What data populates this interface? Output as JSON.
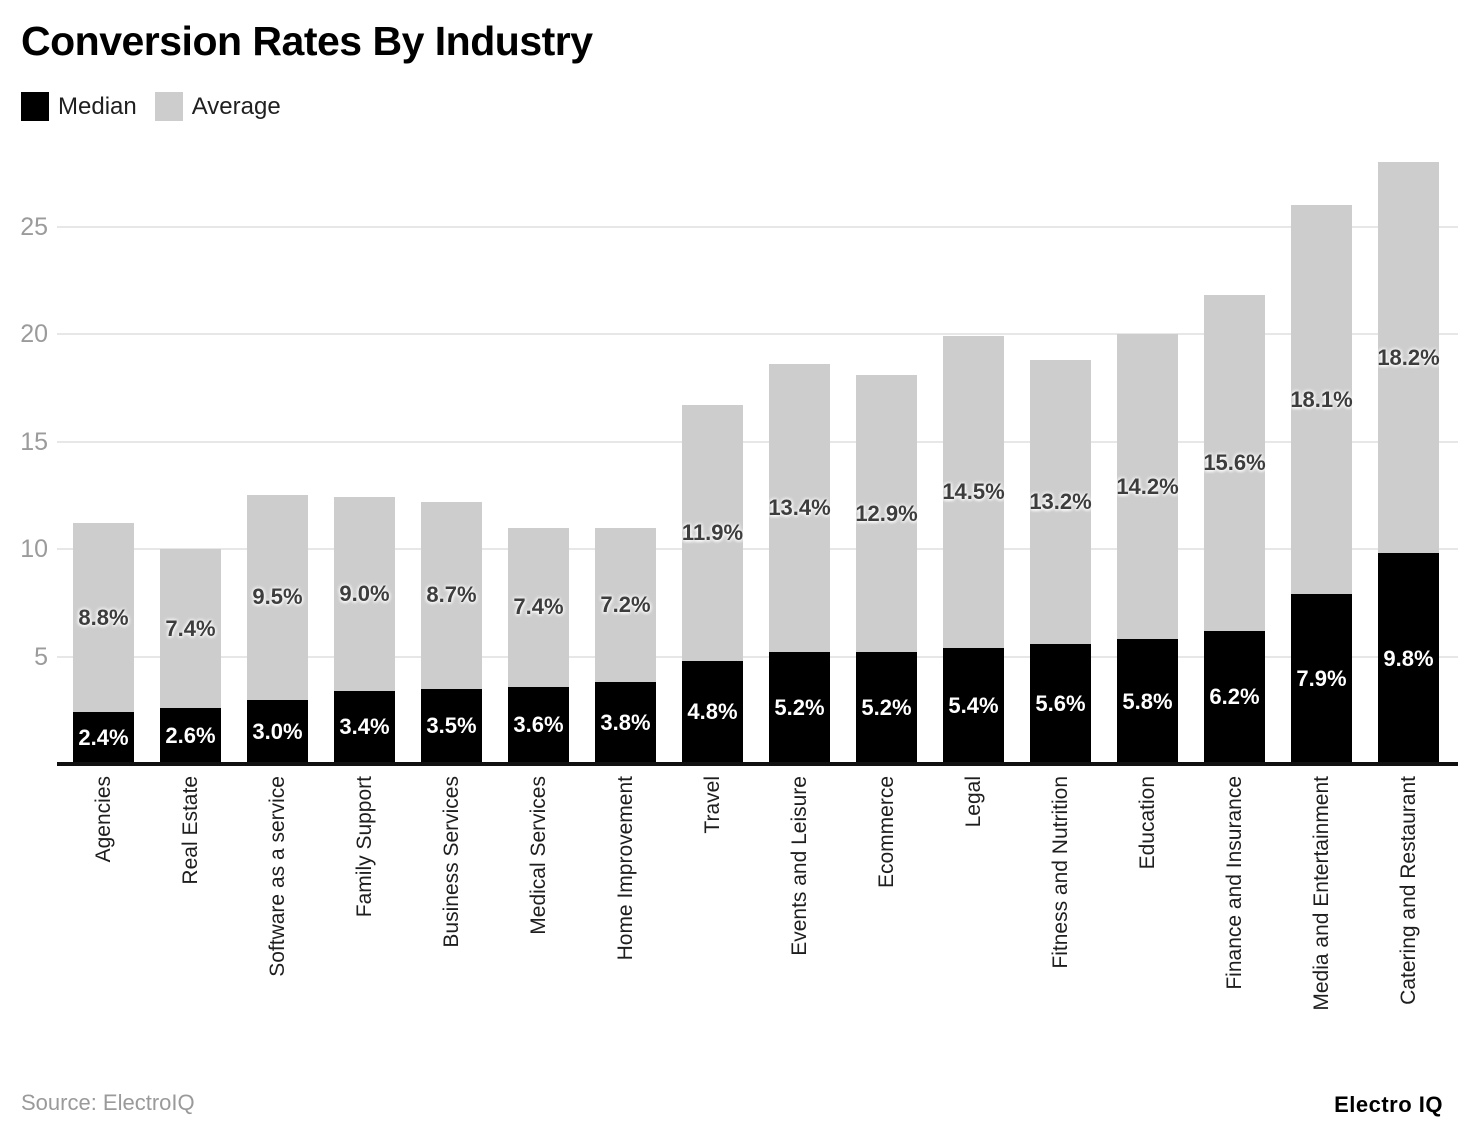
{
  "title": "Conversion Rates By Industry",
  "footer": {
    "source": "Source: ElectroIQ",
    "brand": "Electro IQ"
  },
  "colors": {
    "median_bar": "#000000",
    "average_bar": "#cdcdcd",
    "median_label": "#ffffff",
    "average_label": "#3d3d3d",
    "axis_text": "#9b9b9b",
    "gridline": "#e7e7e7",
    "baseline": "#111111"
  },
  "chart_data": {
    "type": "bar",
    "stacked": true,
    "title": "Conversion Rates By Industry",
    "xlabel": "",
    "ylabel": "",
    "value_suffix": "%",
    "grid": true,
    "legend_position": "top-left",
    "ylim": [
      0,
      28
    ],
    "y_ticks": [
      5,
      10,
      15,
      20,
      25
    ],
    "categories": [
      "Agencies",
      "Real Estate",
      "Software as a service",
      "Family Support",
      "Business Services",
      "Medical Services",
      "Home Improvement",
      "Travel",
      "Events and Leisure",
      "Ecommerce",
      "Legal",
      "Fitness and Nutrition",
      "Education",
      "Finance and Insurance",
      "Media and Entertainment",
      "Catering and Restaurant"
    ],
    "series": [
      {
        "name": "Median",
        "color": "#000000",
        "values": [
          2.4,
          2.6,
          3.0,
          3.4,
          3.5,
          3.6,
          3.8,
          4.8,
          5.2,
          5.2,
          5.4,
          5.6,
          5.8,
          6.2,
          7.9,
          9.8
        ]
      },
      {
        "name": "Average",
        "color": "#cdcdcd",
        "values": [
          8.8,
          7.4,
          9.5,
          9.0,
          8.7,
          7.4,
          7.2,
          11.9,
          13.4,
          12.9,
          14.5,
          13.2,
          14.2,
          15.6,
          18.1,
          18.2
        ]
      }
    ]
  }
}
